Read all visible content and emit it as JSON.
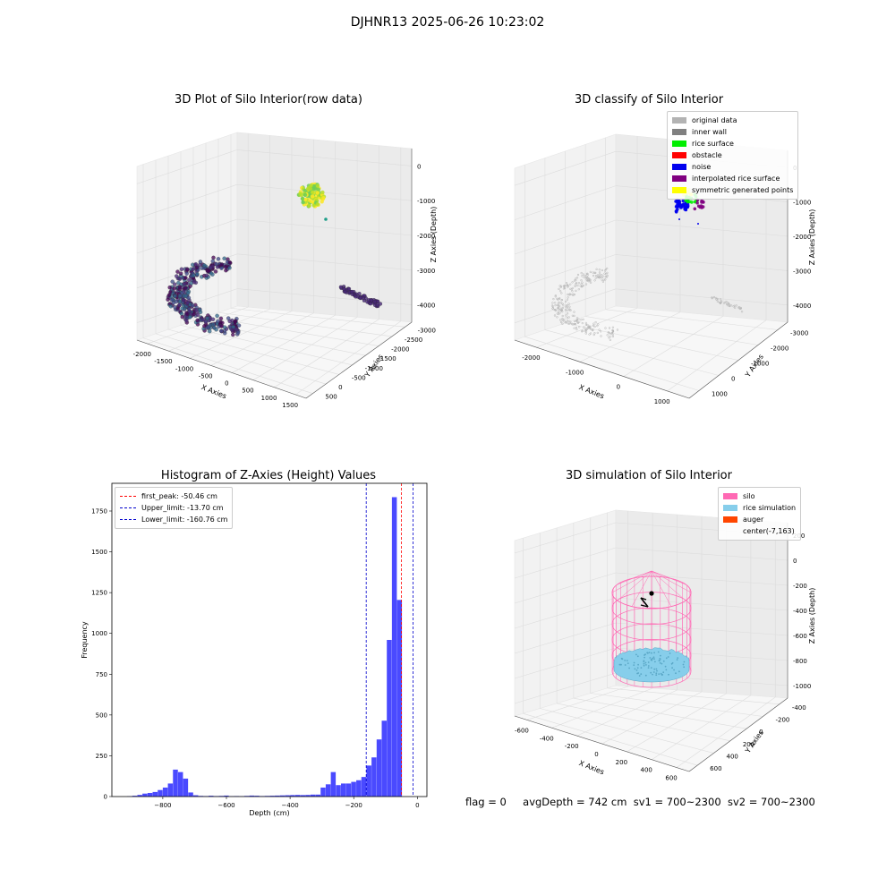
{
  "suptitle": "DJHNR13 2025-06-26 10:23:02",
  "colors": {
    "original": "#b3b3b3",
    "inner_wall": "#808080",
    "rice_surface": "#00ee00",
    "obstacle": "#ff0000",
    "noise": "#0000ee",
    "interpolated": "#800080",
    "symmetric": "#ffff00",
    "silo": "#ff69b4",
    "rice_sim": "#87ceeb",
    "auger": "#ff4500",
    "hist_bar": "#4040ff",
    "first_peak": "#ff0000",
    "limit": "#0000cc"
  },
  "panel1": {
    "title": "3D Plot of Silo Interior(row data)",
    "x_label": "X Axies",
    "y_label": "Y Axies",
    "z_label": "Z Axies (Depth)",
    "x_ticks": [
      "-2000",
      "-1500",
      "-1000",
      "-500",
      "0",
      "500",
      "1000",
      "1500"
    ],
    "y_ticks": [
      "500",
      "0",
      "-500",
      "-1000",
      "-1500",
      "-2000",
      "-2500",
      "-3000"
    ],
    "z_ticks": [
      "0",
      "-1000",
      "-2000",
      "-3000",
      "-4000"
    ]
  },
  "panel2": {
    "title": "3D classify of Silo Interior",
    "x_label": "X Axies",
    "y_label": "Y Axies",
    "z_label": "Z Axies (Depth)",
    "x_ticks": [
      "-2000",
      "-1000",
      "0",
      "1000"
    ],
    "y_ticks": [
      "1000",
      "0",
      "-1000",
      "-2000",
      "-3000"
    ],
    "z_ticks": [
      "0",
      "-1000",
      "-2000",
      "-3000",
      "-4000"
    ],
    "legend": [
      {
        "label": "original data",
        "color": "#b3b3b3"
      },
      {
        "label": "inner wall",
        "color": "#808080"
      },
      {
        "label": "rice surface",
        "color": "#00ee00"
      },
      {
        "label": "obstacle",
        "color": "#ff0000"
      },
      {
        "label": "noise",
        "color": "#0000ee"
      },
      {
        "label": "interpolated rice surface",
        "color": "#800080"
      },
      {
        "label": "symmetric generated points",
        "color": "#ffff00"
      }
    ]
  },
  "panel3": {
    "title": "Histogram of Z-Axies (Height) Values",
    "xlabel": "Depth (cm)",
    "ylabel": "Frequency",
    "legend": [
      {
        "label": "first_peak: -50.46 cm",
        "color": "#ff0000"
      },
      {
        "label": "Upper_limit: -13.70 cm",
        "color": "#0000cc"
      },
      {
        "label": "Lower_limit: -160.76 cm",
        "color": "#0000cc"
      }
    ]
  },
  "panel4": {
    "title": "3D simulation of Silo Interior",
    "x_label": "X Axies",
    "y_label": "Y Axies",
    "z_label": "Z Axies (Depth)",
    "x_ticks": [
      "-600",
      "-400",
      "-200",
      "0",
      "200",
      "400",
      "600"
    ],
    "y_ticks": [
      "600",
      "400",
      "200",
      "0",
      "-200",
      "-400"
    ],
    "z_ticks": [
      "200",
      "0",
      "-200",
      "-400",
      "-600",
      "-800",
      "-1000"
    ],
    "legend": [
      {
        "label": "silo",
        "color": "#ff69b4"
      },
      {
        "label": "rice simulation",
        "color": "#87ceeb"
      },
      {
        "label": "auger",
        "color": "#ff4500"
      },
      {
        "label": "center(-7,163)",
        "color": ""
      }
    ]
  },
  "status": {
    "flag": "flag = 0",
    "avg": "avgDepth = 742 cm",
    "sv1": "sv1 = 700~2300",
    "sv2": "sv2 = 700~2300"
  },
  "chart_data": [
    {
      "type": "bar",
      "title": "Histogram of Z-Axies (Height) Values",
      "xlabel": "Depth (cm)",
      "ylabel": "Frequency",
      "xlim": [
        -960,
        30
      ],
      "ylim": [
        0,
        1920
      ],
      "x_ticks": [
        -800,
        -600,
        -400,
        -200,
        0
      ],
      "y_ticks": [
        0,
        250,
        500,
        750,
        1000,
        1250,
        1500,
        1750
      ],
      "bin_width": 16,
      "bins": [
        [
          -912,
          2
        ],
        [
          -896,
          5
        ],
        [
          -880,
          10
        ],
        [
          -864,
          18
        ],
        [
          -848,
          22
        ],
        [
          -832,
          28
        ],
        [
          -816,
          40
        ],
        [
          -800,
          55
        ],
        [
          -784,
          80
        ],
        [
          -768,
          165
        ],
        [
          -752,
          150
        ],
        [
          -736,
          110
        ],
        [
          -720,
          25
        ],
        [
          -704,
          8
        ],
        [
          -688,
          4
        ],
        [
          -672,
          3
        ],
        [
          -656,
          5
        ],
        [
          -640,
          3
        ],
        [
          -624,
          4
        ],
        [
          -608,
          6
        ],
        [
          -592,
          2
        ],
        [
          -576,
          3
        ],
        [
          -560,
          2
        ],
        [
          -544,
          4
        ],
        [
          -528,
          6
        ],
        [
          -512,
          5
        ],
        [
          -496,
          3
        ],
        [
          -480,
          4
        ],
        [
          -464,
          5
        ],
        [
          -448,
          6
        ],
        [
          -432,
          7
        ],
        [
          -416,
          8
        ],
        [
          -400,
          9
        ],
        [
          -384,
          10
        ],
        [
          -368,
          9
        ],
        [
          -352,
          10
        ],
        [
          -336,
          12
        ],
        [
          -320,
          12
        ],
        [
          -304,
          55
        ],
        [
          -288,
          75
        ],
        [
          -272,
          150
        ],
        [
          -256,
          70
        ],
        [
          -240,
          80
        ],
        [
          -224,
          80
        ],
        [
          -208,
          90
        ],
        [
          -192,
          100
        ],
        [
          -176,
          120
        ],
        [
          -160,
          190
        ],
        [
          -144,
          240
        ],
        [
          -128,
          350
        ],
        [
          -112,
          465
        ],
        [
          -96,
          960
        ],
        [
          -80,
          1835
        ],
        [
          -64,
          1205
        ],
        [
          -48,
          0
        ]
      ],
      "lines": [
        {
          "name": "first_peak",
          "x": -50.46
        },
        {
          "name": "Upper_limit",
          "x": -13.7
        },
        {
          "name": "Lower_limit",
          "x": -160.76
        }
      ]
    }
  ]
}
